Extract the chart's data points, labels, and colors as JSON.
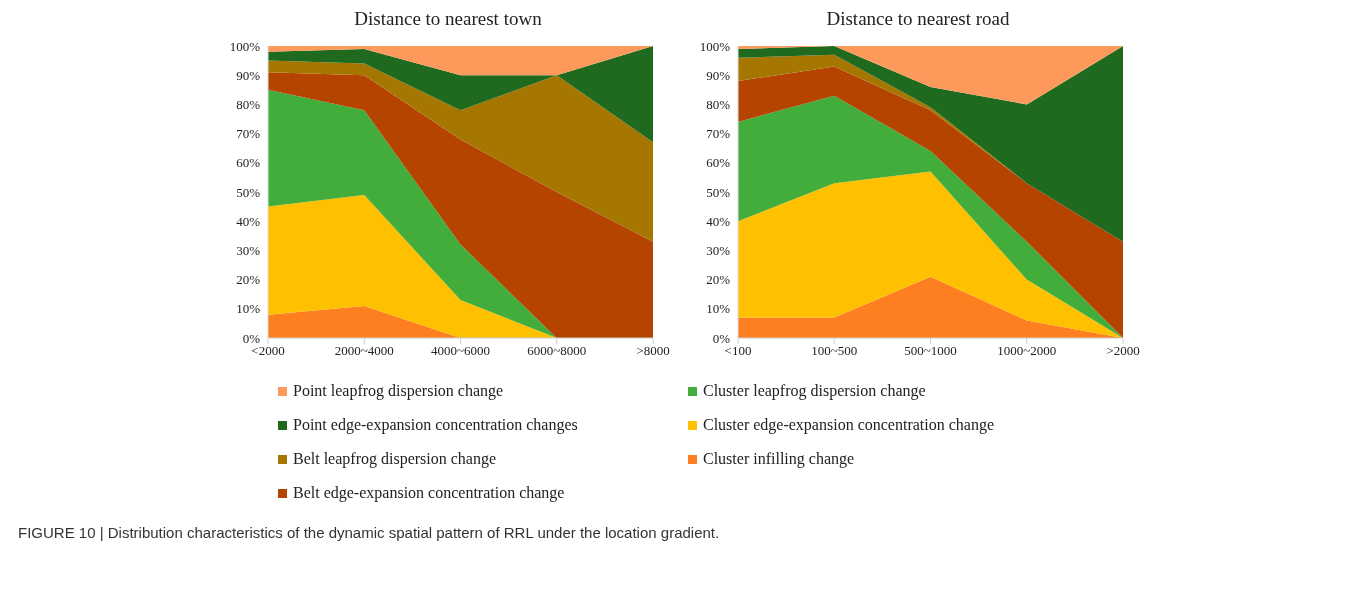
{
  "chart_data": [
    {
      "type": "area",
      "title": "Distance to nearest town",
      "stacked": true,
      "legend": "bottom",
      "categories": [
        "<2000",
        "2000~4000",
        "4000~6000",
        "6000~8000",
        ">8000"
      ],
      "ylim": [
        0,
        100
      ],
      "yticks": [
        {
          "value": 0,
          "label": "0%"
        },
        {
          "value": 10,
          "label": "10%"
        },
        {
          "value": 20,
          "label": "20%"
        },
        {
          "value": 30,
          "label": "30%"
        },
        {
          "value": 40,
          "label": "40%"
        },
        {
          "value": 50,
          "label": "50%"
        },
        {
          "value": 60,
          "label": "60%"
        },
        {
          "value": 70,
          "label": "70%"
        },
        {
          "value": 80,
          "label": "80%"
        },
        {
          "value": 90,
          "label": "90%"
        },
        {
          "value": 100,
          "label": "100%"
        }
      ],
      "grid": false,
      "annotations": [
        "FIGURE 10 | Distribution characteristics of the dynamic spatial pattern of RRL under the location gradient."
      ],
      "series": [
        {
          "name": "Cluster infilling change",
          "color": "#fd7f20",
          "values": [
            8,
            11,
            0,
            0,
            0
          ]
        },
        {
          "name": "Cluster edge-expansion concentration change",
          "color": "#ffc000",
          "values": [
            37,
            38,
            13,
            0,
            0
          ]
        },
        {
          "name": "Cluster leapfrog dispersion change",
          "color": "#43ad3c",
          "values": [
            40,
            29,
            19,
            0,
            0
          ]
        },
        {
          "name": "Belt edge-expansion concentration change",
          "color": "#b54400",
          "values": [
            6,
            12,
            36,
            50,
            33
          ]
        },
        {
          "name": "Belt leapfrog dispersion change",
          "color": "#a57700",
          "values": [
            4,
            4,
            10,
            40,
            34
          ]
        },
        {
          "name": "Point edge-expansion concentration changes",
          "color": "#1f6a1f",
          "values": [
            3,
            5,
            12,
            0,
            33
          ]
        },
        {
          "name": "Point leapfrog dispersion change",
          "color": "#fd9a5b",
          "values": [
            2,
            1,
            10,
            10,
            0
          ]
        }
      ]
    },
    {
      "type": "area",
      "title": "Distance to nearest road",
      "stacked": true,
      "legend": "bottom",
      "categories": [
        "<100",
        "100~500",
        "500~1000",
        "1000~2000",
        ">2000"
      ],
      "ylim": [
        0,
        100
      ],
      "yticks": [
        {
          "value": 0,
          "label": "0%"
        },
        {
          "value": 10,
          "label": "10%"
        },
        {
          "value": 20,
          "label": "20%"
        },
        {
          "value": 30,
          "label": "30%"
        },
        {
          "value": 40,
          "label": "40%"
        },
        {
          "value": 50,
          "label": "50%"
        },
        {
          "value": 60,
          "label": "60%"
        },
        {
          "value": 70,
          "label": "70%"
        },
        {
          "value": 80,
          "label": "80%"
        },
        {
          "value": 90,
          "label": "90%"
        },
        {
          "value": 100,
          "label": "100%"
        }
      ],
      "grid": false,
      "series": [
        {
          "name": "Cluster infilling change",
          "color": "#fd7f20",
          "values": [
            7,
            7,
            21,
            6,
            0
          ]
        },
        {
          "name": "Cluster edge-expansion concentration change",
          "color": "#ffc000",
          "values": [
            33,
            46,
            36,
            14,
            0
          ]
        },
        {
          "name": "Cluster leapfrog dispersion change",
          "color": "#43ad3c",
          "values": [
            34,
            30,
            7,
            13,
            0
          ]
        },
        {
          "name": "Belt edge-expansion concentration change",
          "color": "#b54400",
          "values": [
            14,
            10,
            14,
            20,
            33
          ]
        },
        {
          "name": "Belt leapfrog dispersion change",
          "color": "#a57700",
          "values": [
            8,
            4,
            1,
            0,
            0
          ]
        },
        {
          "name": "Point edge-expansion concentration changes",
          "color": "#1f6a1f",
          "values": [
            3,
            3,
            7,
            27,
            67
          ]
        },
        {
          "name": "Point leapfrog dispersion change",
          "color": "#fd9a5b",
          "values": [
            1,
            0,
            14,
            20,
            0
          ]
        }
      ]
    }
  ]
}
